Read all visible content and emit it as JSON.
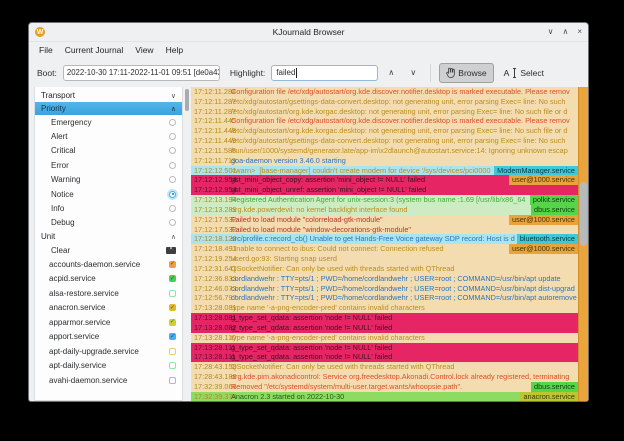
{
  "window": {
    "title": "KJournald Browser",
    "icon_letter": "W",
    "controls": {
      "minimize": "∨",
      "maximize": "∧",
      "close": "×"
    }
  },
  "menu": [
    "File",
    "Current Journal",
    "View",
    "Help"
  ],
  "toolbar": {
    "boot_label": "Boot:",
    "boot_value": "2022-10-30 17:11-2022-11-01 09:51 [de0a436",
    "highlight_label": "Highlight:",
    "highlight_value": "failed",
    "browse_label": "Browse",
    "select_label": "Select",
    "up_arrow": "∧",
    "down_arrow": "∨"
  },
  "sidebar": {
    "transport": {
      "label": "Transport",
      "chevron": "∨"
    },
    "priority": {
      "label": "Priority",
      "chevron": "∧"
    },
    "priorities": [
      {
        "label": "Emergency",
        "checked": false
      },
      {
        "label": "Alert",
        "checked": false
      },
      {
        "label": "Critical",
        "checked": false
      },
      {
        "label": "Error",
        "checked": false
      },
      {
        "label": "Warning",
        "checked": false
      },
      {
        "label": "Notice",
        "checked": true
      },
      {
        "label": "Info",
        "checked": false
      },
      {
        "label": "Debug",
        "checked": false
      }
    ],
    "unit": {
      "label": "Unit",
      "chevron": "∧"
    },
    "clear_label": "Clear",
    "units": [
      {
        "label": "accounts-daemon.service",
        "checked": true,
        "color": "#e8a33d"
      },
      {
        "label": "acpid.service",
        "checked": true,
        "color": "#43d156"
      },
      {
        "label": "alsa-restore.service",
        "checked": false,
        "color": "#90e6a0"
      },
      {
        "label": "anacron.service",
        "checked": true,
        "color": "#ddbb2b"
      },
      {
        "label": "apparmor.service",
        "checked": true,
        "color": "#c9d32f"
      },
      {
        "label": "apport.service",
        "checked": true,
        "color": "#41b1e8"
      },
      {
        "label": "apt-daily-upgrade.service",
        "checked": false,
        "color": "#eec77f"
      },
      {
        "label": "apt-daily.service",
        "checked": false,
        "color": "#90e6a0"
      },
      {
        "label": "avahi-daemon.service",
        "checked": false,
        "color": "#b9a9ee"
      }
    ]
  },
  "log": {
    "rows": [
      {
        "t": "17:12:11.284",
        "m": "Configuration file /etc/xdg/autostart/org.kde.discover.notifier.desktop is marked executable. Please remov",
        "tc": "c-redor",
        "bg": "bg-tan"
      },
      {
        "t": "17:12:11.287",
        "m": "/etc/xdg/autostart/gsettings-data-convert.desktop: not generating unit, error parsing Exec= line: No such ",
        "tc": "c-amber",
        "bg": "bg-tan"
      },
      {
        "t": "17:12:11.287",
        "m": "/etc/xdg/autostart/org.kde.korgac.desktop: not generating unit, error parsing Exec= line: No such file or d",
        "tc": "c-amber",
        "bg": "bg-tan"
      },
      {
        "t": "17:12:11.445",
        "m": "Configuration file /etc/xdg/autostart/org.kde.discover.notifier.desktop is marked executable. Please remov",
        "tc": "c-redor",
        "bg": "bg-tan"
      },
      {
        "t": "17:12:11.448",
        "m": "/etc/xdg/autostart/org.kde.korgac.desktop: not generating unit, error parsing Exec= line: No such file or d",
        "tc": "c-amber",
        "bg": "bg-tan"
      },
      {
        "t": "17:12:11.449",
        "m": "/etc/xdg/autostart/gsettings-data-convert.desktop: not generating unit, error parsing Exec= line: No such",
        "tc": "c-amber",
        "bg": "bg-tan"
      },
      {
        "t": "17:12:11.588",
        "m": "/run/user/1000/systemd/generator.late/app-im\\x2dlaunch@autostart.service:14: Ignoring unknown escap",
        "tc": "c-amber",
        "bg": "bg-tan"
      },
      {
        "t": "17:12:11.719",
        "m": "goa-daemon version 3.46.0 starting",
        "tc": "c-blue",
        "bg": "bg-tan"
      },
      {
        "t": "17:12:12.501",
        "m": "<warn>  [base-manager] couldn't create modem for device '/sys/devices/pci0000",
        "tc": "c-amber",
        "bg": "bg-cyan",
        "chip": "ModemManager.service",
        "chipc": "chip-cyan"
      },
      {
        "t": "17:12:12.954",
        "m": "gst_mini_object_copy: assertion 'mini_object != NULL' failed",
        "tc": "c-dark",
        "bg": "bg-pink",
        "chip": "user@1000.service",
        "chipc": "chip-orange"
      },
      {
        "t": "17:12:12.954",
        "m": "gst_mini_object_unref: assertion 'mini_object != NULL' failed",
        "tc": "c-dark",
        "bg": "bg-pink"
      },
      {
        "t": "17:12:13.194",
        "m": "Registered Authentication Agent for unix-session:3 (system bus name :1.69 [/usr/lib/x86_64",
        "tc": "c-green",
        "bg": "bg-lgreen",
        "chip": "polkit.service",
        "chipc": "chip-green"
      },
      {
        "t": "17:12:13.289",
        "m": "org.kde.powerdevil: no kernel backlight interface found",
        "tc": "c-amber",
        "bg": "bg-lgreen",
        "chip": "dbus.service",
        "chipc": "chip-green"
      },
      {
        "t": "17:12:17.532",
        "m": "Failed to load module \"colorreload-gtk-module\"",
        "tc": "c-dred",
        "bg": "bg-tan",
        "chip": "user@1000.service",
        "chipc": "chip-orange"
      },
      {
        "t": "17:12:17.532",
        "m": "Failed to load module \"window-decorations-gtk-module\"",
        "tc": "c-dred",
        "bg": "bg-tan"
      },
      {
        "t": "17:12:18.128",
        "m": "src/profile.c:record_cb() Unable to get Hands-Free Voice gateway SDP record: Host is do",
        "tc": "c-blue",
        "bg": "bg-cyan",
        "chip": "bluetooth.service",
        "chipc": "chip-cyan"
      },
      {
        "t": "17:12:18.491",
        "m": "Unable to connect to ibus: Could not connect: Connection refused",
        "tc": "c-amber",
        "bg": "bg-tan",
        "chip": "user@1000.service",
        "chipc": "chip-orange"
      },
      {
        "t": "17:12:19.254",
        "m": "userd.go:93: Starting snap userd",
        "tc": "c-amber",
        "bg": "bg-tan"
      },
      {
        "t": "17:12:31.641",
        "m": "QSocketNotifier: Can only be used with threads started with QThread",
        "tc": "c-amber",
        "bg": "bg-tan"
      },
      {
        "t": "17:12:36.833",
        "m": "cordlandwehr : TTY=pts/1 ; PWD=/home/cordlandwehr ; USER=root ; COMMAND=/usr/bin/apt update",
        "tc": "c-blue",
        "bg": "bg-tan"
      },
      {
        "t": "17:12:46.073",
        "m": "cordlandwehr : TTY=pts/1 ; PWD=/home/cordlandwehr ; USER=root ; COMMAND=/usr/bin/apt dist-upgrad",
        "tc": "c-blue",
        "bg": "bg-tan"
      },
      {
        "t": "17:12:56.797",
        "m": "cordlandwehr : TTY=pts/1 ; PWD=/home/cordlandwehr ; USER=root ; COMMAND=/usr/bin/apt autoremove",
        "tc": "c-blue",
        "bg": "bg-tan"
      },
      {
        "t": "17:13:28.081",
        "m": "type name '-a-png-encoder-pred' contains invalid characters",
        "tc": "c-amber",
        "bg": "bg-tan"
      },
      {
        "t": "17:13:28.081",
        "m": "g_type_set_qdata: assertion 'node != NULL' failed",
        "tc": "c-dark",
        "bg": "bg-pink"
      },
      {
        "t": "17:13:28.082",
        "m": "g_type_set_qdata: assertion 'node != NULL' failed",
        "tc": "c-dark",
        "bg": "bg-pink"
      },
      {
        "t": "17:13:28.110",
        "m": "type name '-a-png-encoder-pred' contains invalid characters",
        "tc": "c-amber",
        "bg": "bg-tan"
      },
      {
        "t": "17:13:28.111",
        "m": "g_type_set_qdata: assertion 'node != NULL' failed",
        "tc": "c-dark",
        "bg": "bg-pink"
      },
      {
        "t": "17:13:28.111",
        "m": "g_type_set_qdata: assertion 'node != NULL' failed",
        "tc": "c-dark",
        "bg": "bg-pink"
      },
      {
        "t": "17:28:43.158",
        "m": "QSocketNotifier: Can only be used with threads started with QThread",
        "tc": "c-amber",
        "bg": "bg-tan"
      },
      {
        "t": "17:28:43.186",
        "m": "org.kde.pim.akonadicontrol: Service org.freedesktop.Akonadi.Control.lock already registered, terminating",
        "tc": "c-redor",
        "bg": "bg-tan"
      },
      {
        "t": "17:32:39.066",
        "m": "Removed \"/etc/systemd/system/multi-user.target.wants/whoopsie.path\".",
        "tc": "c-redor",
        "bg": "bg-tan",
        "chip": "dbus.service",
        "chipc": "chip-green"
      },
      {
        "t": "17:32:39.374",
        "m": "Anacron 2.3 started on 2022-10-30",
        "tc": "c-dgreen",
        "bg": "bg-green",
        "chip": "anacron.service",
        "chipc": "chip-olive"
      }
    ]
  }
}
